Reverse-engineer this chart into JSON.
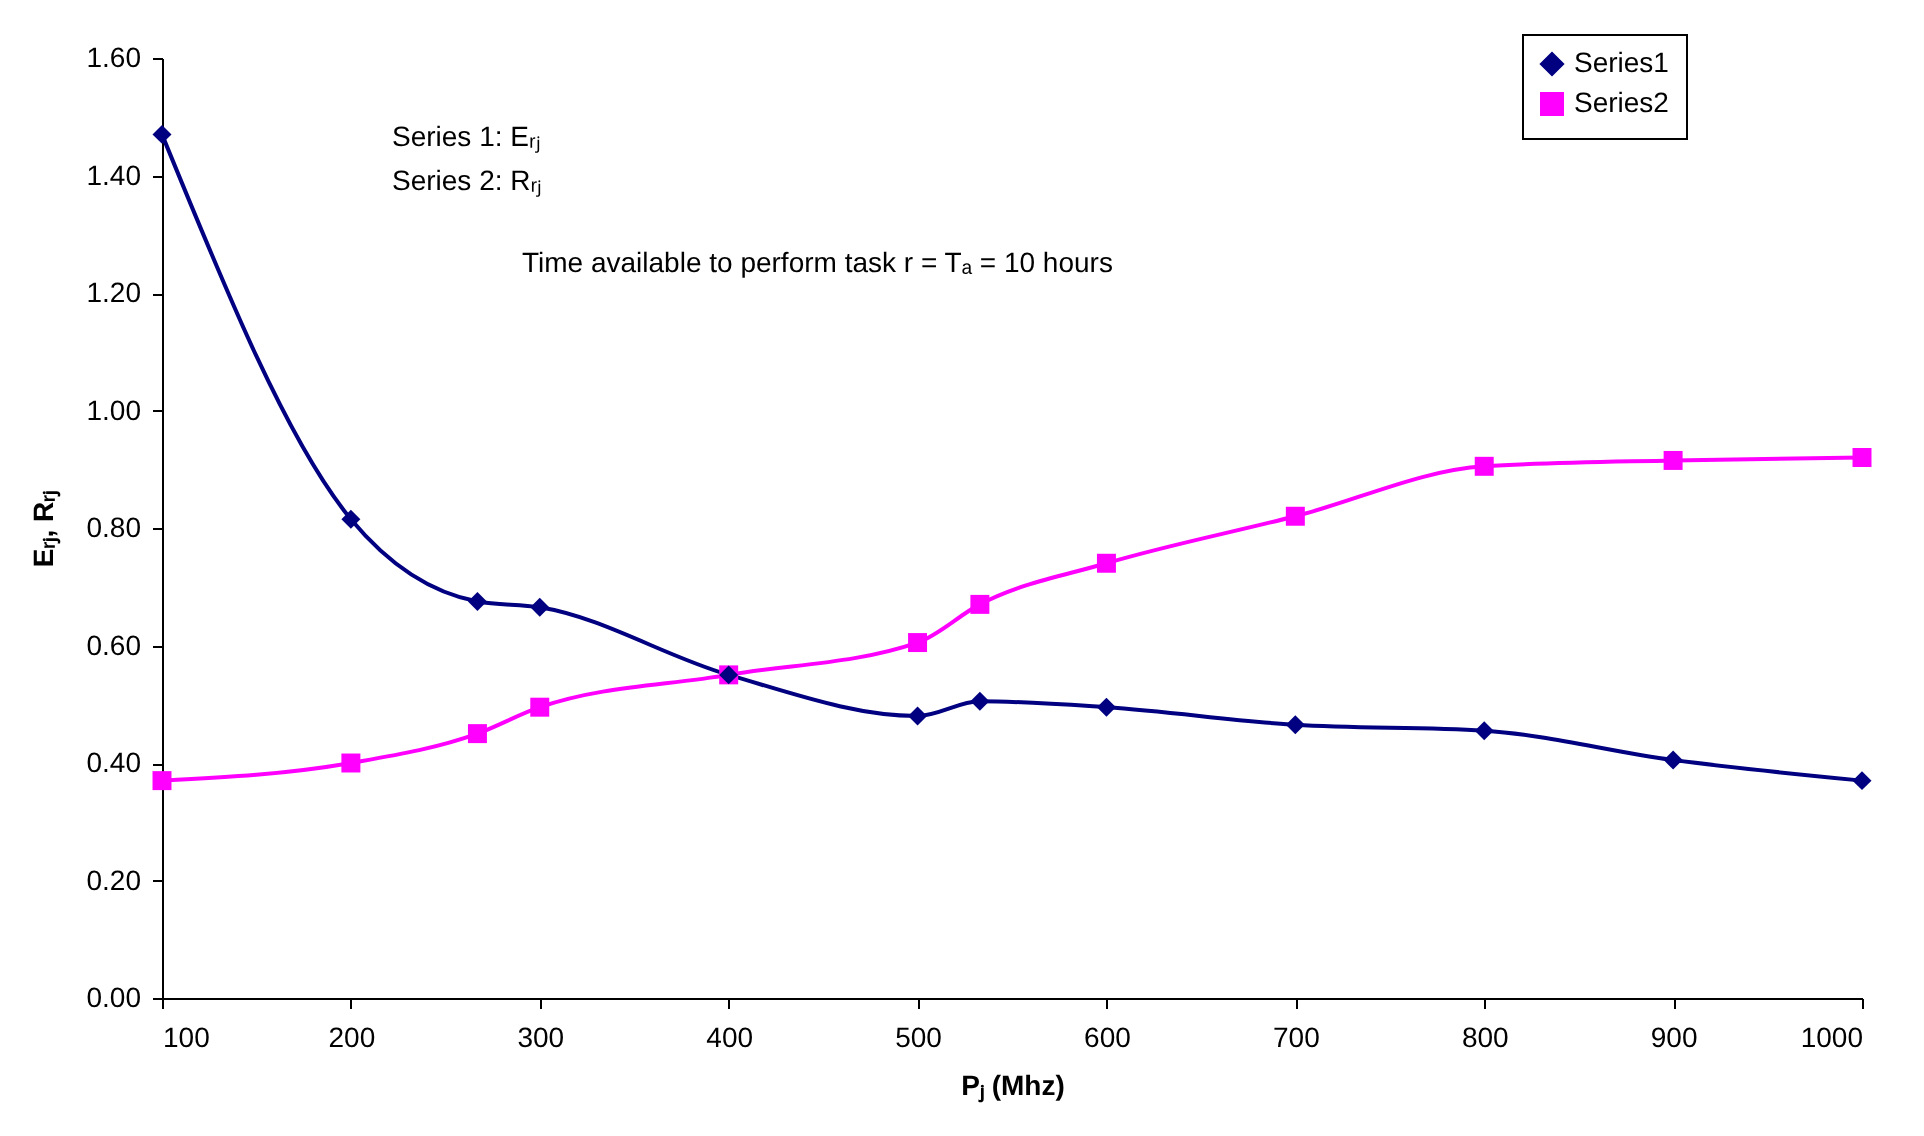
{
  "chart_data": {
    "type": "line",
    "xlabel": "Pⱼ (Mhz)",
    "ylabel": "Eᵣⱼ, Rᵣⱼ",
    "x": [
      100,
      200,
      267,
      300,
      400,
      500,
      533,
      600,
      700,
      800,
      900,
      1000
    ],
    "series": [
      {
        "name": "Series1",
        "color": "#000080",
        "marker": "diamond",
        "values": [
          1.47,
          0.815,
          0.675,
          0.665,
          0.55,
          0.48,
          0.505,
          0.495,
          0.465,
          0.455,
          0.405,
          0.37
        ]
      },
      {
        "name": "Series2",
        "color": "#ff00ff",
        "marker": "square",
        "values": [
          0.37,
          0.4,
          0.45,
          0.495,
          0.55,
          0.605,
          0.67,
          0.74,
          0.82,
          0.905,
          0.915,
          0.92
        ]
      }
    ],
    "xlim": [
      100,
      1000
    ],
    "xticks": [
      100,
      200,
      300,
      400,
      500,
      600,
      700,
      800,
      900,
      1000
    ],
    "ylim": [
      0,
      1.6
    ],
    "yticks": [
      {
        "value": 0,
        "label": "0.00"
      },
      {
        "value": 0.2,
        "label": "0.20"
      },
      {
        "value": 0.4,
        "label": "0.40"
      },
      {
        "value": 0.6,
        "label": "0.60"
      },
      {
        "value": 0.8,
        "label": "0.80"
      },
      {
        "value": 1,
        "label": "1.00"
      },
      {
        "value": 1.2,
        "label": "1.20"
      },
      {
        "value": 1.4,
        "label": "1.40"
      },
      {
        "value": 1.6,
        "label": "1.60"
      }
    ],
    "annotations": [
      "Series 1: Eᵣⱼ",
      "Series 2: Rᵣⱼ",
      "Time available to perform task r = Tₐ = 10 hours"
    ],
    "legend": "top right",
    "grid": false,
    "line_style": "solid"
  }
}
